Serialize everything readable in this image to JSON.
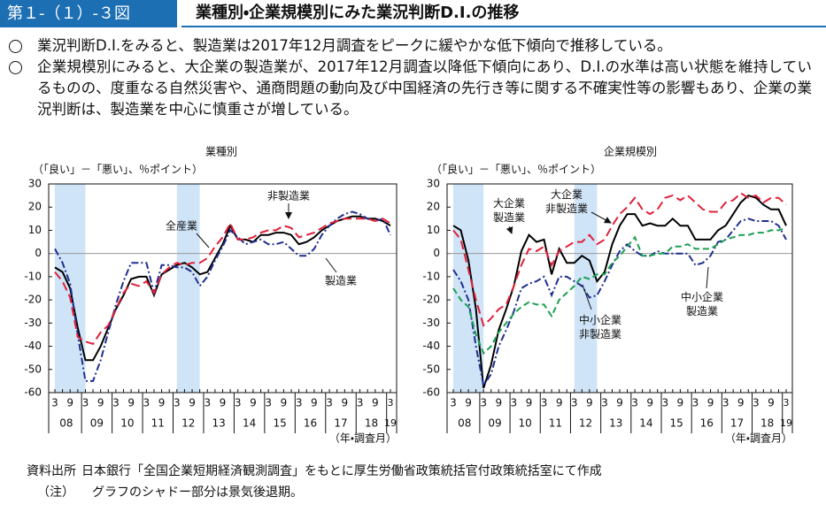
{
  "header": {
    "figure_no": "第１-（１）-３図",
    "title": "業種別・企業規模別にみた業況判断D.I.の推移"
  },
  "bullets": [
    "業況判断D.I.をみると、製造業は2017年12月調査をピークに緩やかな低下傾向で推移している。",
    "企業規模別にみると、大企業の製造業が、2017年12月調査以降低下傾向にあり、D.I.の水準は高い状態を維持しているものの、度重なる自然災害や、通商問題の動向及び中国経済の先行き等に関する不確実性等の影響もあり、企業の業況判断は、製造業を中心に慎重さが増している。"
  ],
  "notes": [
    {
      "label": "資料出所",
      "text": "日本銀行「全国企業短期経済観測調査」をもとに厚生労働省政策統括官付政策統括室にて作成"
    },
    {
      "label": "（注）",
      "text": "グラフのシャドー部分は景気後退期。"
    }
  ],
  "chart_data": [
    {
      "type": "line",
      "subtitle": "業種別",
      "y_label": "（「良い」－「悪い」、％ポイント）",
      "x_label": "（年・調査月）",
      "categories": [
        "3",
        null,
        "9",
        null,
        "3",
        null,
        "9",
        null,
        "3",
        null,
        "9",
        null,
        "3",
        null,
        "9",
        null,
        "3",
        null,
        "9",
        null,
        "3",
        null,
        "9",
        null,
        "3",
        null,
        "9",
        null,
        "3",
        null,
        "9",
        null,
        "3",
        null,
        "9",
        null,
        "3",
        null,
        "9",
        null,
        "3",
        null,
        "9",
        null,
        "3"
      ],
      "year_labels": [
        "08",
        "09",
        "10",
        "11",
        "12",
        "13",
        "14",
        "15",
        "16",
        "17",
        "18",
        "19"
      ],
      "shaded_ranges": [
        [
          0,
          4
        ],
        [
          16,
          19
        ]
      ],
      "ylim": [
        -60,
        30
      ],
      "yticks": [
        -60,
        -50,
        -40,
        -30,
        -20,
        -10,
        0,
        10,
        20,
        30
      ],
      "series": [
        {
          "name": "全産業",
          "color": "#000000",
          "dash": "none",
          "values": [
            -6,
            -8,
            -15,
            -32,
            -46,
            -46,
            -40,
            -32,
            -24,
            -18,
            -11,
            -10,
            -10,
            -18,
            -9,
            -7,
            -5,
            -4,
            -6,
            -9,
            -8,
            -2,
            4,
            12,
            6,
            6,
            5,
            8,
            8,
            9,
            9,
            8,
            4,
            5,
            7,
            10,
            12,
            14,
            15,
            16,
            16,
            15,
            15,
            14,
            12
          ]
        },
        {
          "name": "製造業",
          "color": "#1f2f8f",
          "dash": "8,3,2,3",
          "values": [
            2,
            -4,
            -13,
            -35,
            -55,
            -55,
            -46,
            -34,
            -22,
            -12,
            -4,
            -4,
            -4,
            -17,
            -5,
            -5,
            -6,
            -6,
            -8,
            -14,
            -10,
            -3,
            3,
            10,
            7,
            4,
            5,
            6,
            4,
            4,
            5,
            2,
            -1,
            -1,
            2,
            8,
            12,
            15,
            17,
            18,
            17,
            15,
            14,
            15,
            8
          ]
        },
        {
          "name": "非製造業",
          "color": "#e0203a",
          "dash": "10,5",
          "values": [
            -8,
            -12,
            -19,
            -36,
            -38,
            -39,
            -34,
            -31,
            -24,
            -17,
            -13,
            -14,
            -12,
            -17,
            -9,
            -6,
            -4,
            -5,
            -4,
            -4,
            -2,
            3,
            7,
            13,
            6,
            6,
            7,
            9,
            10,
            10,
            12,
            11,
            7,
            8,
            9,
            11,
            13,
            14,
            15,
            15,
            15,
            15,
            14,
            15,
            13
          ]
        }
      ]
    },
    {
      "type": "line",
      "subtitle": "企業規模別",
      "y_label": "（「良い」－「悪い」、％ポイント）",
      "x_label": "（年・調査月）",
      "categories": [
        "3",
        null,
        "9",
        null,
        "3",
        null,
        "9",
        null,
        "3",
        null,
        "9",
        null,
        "3",
        null,
        "9",
        null,
        "3",
        null,
        "9",
        null,
        "3",
        null,
        "9",
        null,
        "3",
        null,
        "9",
        null,
        "3",
        null,
        "9",
        null,
        "3",
        null,
        "9",
        null,
        "3",
        null,
        "9",
        null,
        "3",
        null,
        "9",
        null,
        "3"
      ],
      "year_labels": [
        "08",
        "09",
        "10",
        "11",
        "12",
        "13",
        "14",
        "15",
        "16",
        "17",
        "18",
        "19"
      ],
      "shaded_ranges": [
        [
          0,
          4
        ],
        [
          16,
          19
        ]
      ],
      "ylim": [
        -60,
        30
      ],
      "yticks": [
        -60,
        -50,
        -40,
        -30,
        -20,
        -10,
        0,
        10,
        20,
        30
      ],
      "series": [
        {
          "name": "大企業\n製造業",
          "color": "#000000",
          "dash": "none",
          "values": [
            12,
            10,
            -3,
            -24,
            -58,
            -48,
            -33,
            -24,
            -14,
            1,
            8,
            5,
            6,
            -9,
            2,
            -4,
            -4,
            -1,
            -3,
            -12,
            -8,
            4,
            12,
            17,
            17,
            12,
            13,
            12,
            12,
            15,
            12,
            12,
            6,
            6,
            6,
            10,
            12,
            17,
            22,
            25,
            24,
            21,
            19,
            19,
            12
          ]
        },
        {
          "name": "大企業\n非製造業",
          "color": "#e0203a",
          "dash": "10,5",
          "values": [
            10,
            6,
            -7,
            -20,
            -31,
            -28,
            -24,
            -22,
            -14,
            -5,
            2,
            1,
            3,
            -5,
            1,
            3,
            5,
            5,
            8,
            4,
            6,
            12,
            17,
            20,
            24,
            19,
            17,
            19,
            24,
            25,
            23,
            25,
            22,
            19,
            18,
            18,
            22,
            23,
            26,
            24,
            25,
            22,
            24,
            24,
            21
          ]
        },
        {
          "name": "中小企業\n製造業",
          "color": "#1f2f8f",
          "dash": "8,3,2,3",
          "values": [
            -7,
            -12,
            -20,
            -40,
            -57,
            -52,
            -40,
            -33,
            -25,
            -15,
            -13,
            -12,
            -10,
            -18,
            -10,
            -10,
            -12,
            -14,
            -19,
            -18,
            -12,
            -5,
            1,
            4,
            1,
            -1,
            -1,
            1,
            0,
            0,
            0,
            0,
            -5,
            -4,
            -1,
            5,
            6,
            10,
            14,
            15,
            14,
            14,
            14,
            12,
            6
          ]
        },
        {
          "name": "中小企業\n非製造業",
          "color": "#1aa050",
          "dash": "7,4",
          "values": [
            -15,
            -20,
            -23,
            -35,
            -43,
            -40,
            -34,
            -30,
            -26,
            -23,
            -21,
            -22,
            -22,
            -27,
            -20,
            -17,
            -14,
            -10,
            -11,
            -9,
            -9,
            -4,
            -1,
            3,
            7,
            -1,
            -1,
            0,
            0,
            3,
            3,
            4,
            2,
            2,
            2,
            4,
            6,
            7,
            8,
            8,
            9,
            9,
            10,
            10,
            11
          ]
        }
      ]
    }
  ]
}
